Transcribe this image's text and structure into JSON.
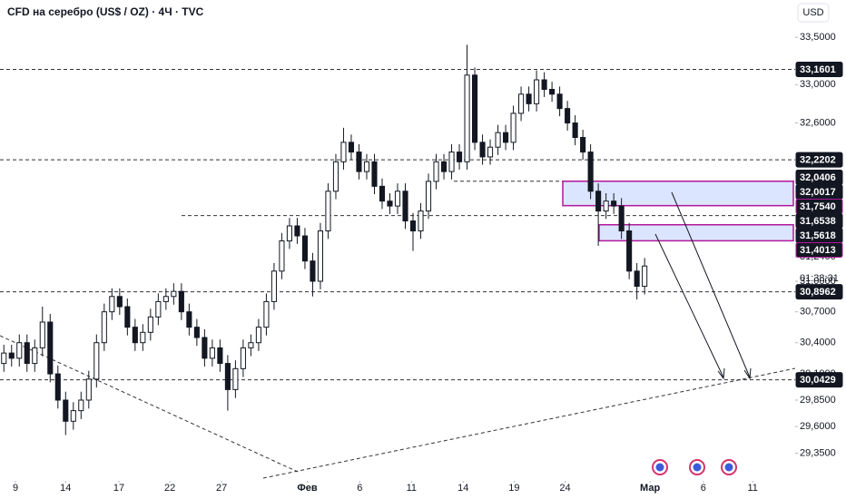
{
  "chart_data": {
    "type": "candlestick",
    "title": "CFD на серебро (US$ / OZ) · 4Ч · TVC",
    "currency": "USD",
    "countdown": "01:38:31",
    "log_scale": true,
    "up_color": "#ffffff",
    "down_color": "#131722",
    "zone_color": "#d6e0ff",
    "zone_border": "#b0179a",
    "xlim": [
      0,
      103
    ],
    "xticks": [
      {
        "value": 2,
        "label": "9"
      },
      {
        "value": 8.5,
        "label": "14"
      },
      {
        "value": 15.4,
        "label": "17"
      },
      {
        "value": 22,
        "label": "22"
      },
      {
        "value": 28.7,
        "label": "27"
      },
      {
        "value": 39.8,
        "label": "Фев"
      },
      {
        "value": 46.6,
        "label": "6"
      },
      {
        "value": 53.3,
        "label": "11"
      },
      {
        "value": 60,
        "label": "14"
      },
      {
        "value": 66.6,
        "label": "19"
      },
      {
        "value": 73.2,
        "label": "24"
      },
      {
        "value": 84.2,
        "label": "Мар"
      },
      {
        "value": 91.1,
        "label": "6"
      },
      {
        "value": 97.5,
        "label": "11"
      }
    ],
    "ylim": [
      29.11,
      33.9
    ],
    "yticks": [
      {
        "value": 33.5,
        "label": "33,5000"
      },
      {
        "value": 33.0,
        "label": "33,0000"
      },
      {
        "value": 32.6,
        "label": "32,6000"
      },
      {
        "value": 31.24,
        "label": "31,2400"
      },
      {
        "value": 31.0,
        "label": "31,0000"
      },
      {
        "value": 30.7,
        "label": "30,7000"
      },
      {
        "value": 30.4,
        "label": "30,4000"
      },
      {
        "value": 30.1,
        "label": "30,1000"
      },
      {
        "value": 29.85,
        "label": "29,8500"
      },
      {
        "value": 29.6,
        "label": "29,6000"
      },
      {
        "value": 29.35,
        "label": "29,3500"
      }
    ],
    "price_lines": [
      {
        "value": 33.1601,
        "label": "33,1601"
      },
      {
        "value": 32.2202,
        "label": "32,2202"
      },
      {
        "value": 32.0406,
        "label": "32,0406"
      },
      {
        "value": 32.0017,
        "label": "32,0017"
      },
      {
        "value": 31.754,
        "label": "31,7540"
      },
      {
        "value": 31.6538,
        "label": "31,6538"
      },
      {
        "value": 31.5618,
        "label": "31,5618"
      },
      {
        "value": 31.4013,
        "label": "31,4013"
      },
      {
        "value": 30.8962,
        "label": "30,8962"
      },
      {
        "value": 30.0429,
        "label": "30,0429"
      }
    ],
    "candles": [
      [
        30.2,
        30.38,
        30.12,
        30.3
      ],
      [
        30.3,
        30.38,
        30.17,
        30.25
      ],
      [
        30.25,
        30.48,
        30.17,
        30.4
      ],
      [
        30.4,
        30.48,
        30.12,
        30.2
      ],
      [
        30.2,
        30.43,
        30.12,
        30.35
      ],
      [
        30.35,
        30.75,
        30.27,
        30.6
      ],
      [
        30.6,
        30.68,
        30.02,
        30.1
      ],
      [
        30.1,
        30.18,
        29.77,
        29.85
      ],
      [
        29.85,
        29.93,
        29.52,
        29.65
      ],
      [
        29.65,
        29.83,
        29.57,
        29.75
      ],
      [
        29.75,
        29.93,
        29.67,
        29.85
      ],
      [
        29.85,
        30.13,
        29.77,
        30.05
      ],
      [
        30.05,
        30.48,
        29.97,
        30.4
      ],
      [
        30.4,
        30.78,
        30.32,
        30.7
      ],
      [
        30.7,
        30.93,
        30.62,
        30.85
      ],
      [
        30.85,
        30.93,
        30.67,
        30.75
      ],
      [
        30.75,
        30.83,
        30.47,
        30.55
      ],
      [
        30.55,
        30.63,
        30.32,
        30.4
      ],
      [
        30.4,
        30.58,
        30.32,
        30.5
      ],
      [
        30.5,
        30.73,
        30.42,
        30.65
      ],
      [
        30.65,
        30.88,
        30.57,
        30.8
      ],
      [
        30.8,
        30.93,
        30.72,
        30.85
      ],
      [
        30.85,
        30.98,
        30.77,
        30.9
      ],
      [
        30.9,
        30.98,
        30.62,
        30.7
      ],
      [
        30.7,
        30.78,
        30.47,
        30.55
      ],
      [
        30.55,
        30.63,
        30.37,
        30.45
      ],
      [
        30.45,
        30.53,
        30.17,
        30.25
      ],
      [
        30.25,
        30.43,
        30.17,
        30.35
      ],
      [
        30.35,
        30.43,
        30.12,
        30.2
      ],
      [
        30.2,
        30.28,
        29.75,
        29.95
      ],
      [
        29.95,
        30.23,
        29.87,
        30.15
      ],
      [
        30.15,
        30.43,
        30.07,
        30.35
      ],
      [
        30.35,
        30.48,
        30.27,
        30.4
      ],
      [
        30.4,
        30.63,
        30.32,
        30.55
      ],
      [
        30.55,
        30.88,
        30.47,
        30.8
      ],
      [
        30.8,
        31.18,
        30.72,
        31.1
      ],
      [
        31.1,
        31.48,
        31.02,
        31.4
      ],
      [
        31.4,
        31.63,
        31.32,
        31.55
      ],
      [
        31.55,
        31.63,
        31.37,
        31.45
      ],
      [
        31.45,
        31.53,
        31.12,
        31.2
      ],
      [
        31.2,
        31.28,
        30.85,
        31.0
      ],
      [
        31.0,
        31.58,
        30.92,
        31.5
      ],
      [
        31.5,
        31.98,
        31.42,
        31.9
      ],
      [
        31.9,
        32.28,
        31.82,
        32.2
      ],
      [
        32.2,
        32.55,
        32.12,
        32.4
      ],
      [
        32.4,
        32.48,
        32.22,
        32.3
      ],
      [
        32.3,
        32.38,
        32.02,
        32.1
      ],
      [
        32.1,
        32.28,
        32.02,
        32.2
      ],
      [
        32.2,
        32.28,
        31.87,
        31.95
      ],
      [
        31.95,
        32.03,
        31.72,
        31.8
      ],
      [
        31.8,
        31.88,
        31.67,
        31.75
      ],
      [
        31.75,
        31.98,
        31.67,
        31.9
      ],
      [
        31.9,
        31.98,
        31.52,
        31.6
      ],
      [
        31.6,
        31.68,
        31.3,
        31.5
      ],
      [
        31.5,
        31.78,
        31.42,
        31.7
      ],
      [
        31.7,
        32.08,
        31.62,
        32.0
      ],
      [
        32.0,
        32.28,
        31.92,
        32.2
      ],
      [
        32.2,
        32.28,
        32.02,
        32.1
      ],
      [
        32.1,
        32.38,
        32.02,
        32.3
      ],
      [
        32.3,
        32.38,
        32.12,
        32.2
      ],
      [
        32.2,
        33.42,
        32.12,
        33.1
      ],
      [
        33.1,
        33.18,
        32.32,
        32.4
      ],
      [
        32.4,
        32.48,
        32.17,
        32.25
      ],
      [
        32.25,
        32.43,
        32.17,
        32.35
      ],
      [
        32.35,
        32.58,
        32.27,
        32.5
      ],
      [
        32.5,
        32.58,
        32.32,
        32.4
      ],
      [
        32.4,
        32.78,
        32.32,
        32.7
      ],
      [
        32.7,
        32.98,
        32.62,
        32.9
      ],
      [
        32.9,
        32.98,
        32.72,
        32.8
      ],
      [
        32.8,
        33.15,
        32.72,
        33.05
      ],
      [
        33.05,
        33.13,
        32.87,
        32.95
      ],
      [
        32.95,
        33.03,
        32.82,
        32.9
      ],
      [
        32.9,
        32.98,
        32.67,
        32.75
      ],
      [
        32.75,
        32.83,
        32.52,
        32.6
      ],
      [
        32.6,
        32.68,
        32.37,
        32.45
      ],
      [
        32.45,
        32.53,
        32.22,
        32.3
      ],
      [
        32.3,
        32.38,
        31.82,
        31.9
      ],
      [
        31.9,
        31.98,
        31.35,
        31.7
      ],
      [
        31.7,
        31.88,
        31.62,
        31.8
      ],
      [
        31.8,
        31.88,
        31.67,
        31.75
      ],
      [
        31.75,
        31.83,
        31.42,
        31.5
      ],
      [
        31.5,
        31.58,
        31.02,
        31.1
      ],
      [
        31.1,
        31.18,
        30.82,
        30.95
      ],
      [
        30.95,
        31.23,
        30.87,
        31.15
      ]
    ]
  }
}
